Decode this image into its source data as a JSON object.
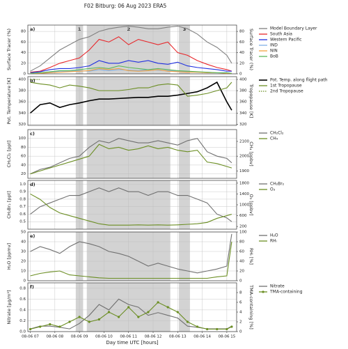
{
  "chart_data": [
    {
      "type": "line",
      "title": "F02 Bitburg: 06 Aug 2023   ERA5",
      "panel": "a)",
      "shading": [
        {
          "label": "1",
          "range": [
            8.85,
            9.15
          ]
        },
        {
          "label": "2",
          "range": [
            9.3,
            12.7
          ]
        },
        {
          "label": "3",
          "range": [
            13.05,
            13.5
          ]
        }
      ],
      "ylabel": "Surface Tracer (%)",
      "y2label": "Surface Tracer (%)",
      "xlim": [
        6.9,
        15.4
      ],
      "ylim": [
        0,
        92
      ],
      "yticks": [
        0,
        20,
        40,
        60,
        80
      ],
      "y2lim": [
        0,
        92
      ],
      "y2ticks": [
        0,
        20,
        40,
        60,
        80
      ],
      "x": [
        7.0,
        7.4,
        7.8,
        8.2,
        8.6,
        9.0,
        9.4,
        9.8,
        10.2,
        10.6,
        11.0,
        11.4,
        11.8,
        12.2,
        12.6,
        13.0,
        13.4,
        13.8,
        14.2,
        14.6,
        15.0,
        15.2
      ],
      "series": [
        {
          "name": "Model Boundary Layer",
          "color": "#808080",
          "values": [
            5,
            15,
            30,
            45,
            55,
            65,
            70,
            80,
            85,
            88,
            90,
            88,
            85,
            85,
            88,
            90,
            85,
            75,
            60,
            50,
            35,
            20
          ]
        },
        {
          "name": "South Asia",
          "color": "#e8262a",
          "values": [
            3,
            5,
            12,
            20,
            25,
            30,
            45,
            65,
            60,
            70,
            55,
            65,
            60,
            55,
            60,
            40,
            35,
            25,
            18,
            12,
            8,
            5
          ]
        },
        {
          "name": "Western Pacific",
          "color": "#1f2fe0",
          "values": [
            2,
            4,
            8,
            10,
            10,
            12,
            15,
            25,
            20,
            20,
            25,
            22,
            25,
            20,
            18,
            22,
            15,
            12,
            10,
            8,
            5,
            5
          ]
        },
        {
          "name": "IND",
          "color": "#7fb0e8",
          "values": [
            1,
            2,
            3,
            5,
            5,
            6,
            5,
            8,
            6,
            8,
            7,
            6,
            8,
            7,
            6,
            5,
            4,
            3,
            3,
            2,
            2,
            1
          ]
        },
        {
          "name": "NIN",
          "color": "#f0a040",
          "values": [
            1,
            1,
            2,
            3,
            4,
            5,
            6,
            10,
            8,
            10,
            6,
            5,
            6,
            8,
            5,
            4,
            3,
            3,
            2,
            2,
            1,
            1
          ]
        },
        {
          "name": "BoB",
          "color": "#5cb85c",
          "values": [
            1,
            2,
            4,
            6,
            6,
            8,
            10,
            12,
            10,
            15,
            12,
            10,
            8,
            10,
            8,
            6,
            5,
            4,
            3,
            2,
            2,
            1
          ]
        }
      ]
    },
    {
      "type": "line",
      "panel": "b)",
      "ylabel": "Pot. Temperature [K]",
      "y2label": "Tropopause [K]",
      "xlim": [
        6.9,
        15.4
      ],
      "ylim": [
        318,
        405
      ],
      "yticks": [
        320,
        340,
        360,
        380,
        400
      ],
      "y2lim": [
        318,
        405
      ],
      "y2ticks": [
        320,
        340,
        360,
        380,
        400
      ],
      "x": [
        7.0,
        7.4,
        7.8,
        8.2,
        8.6,
        9.0,
        9.4,
        9.8,
        10.2,
        10.6,
        11.0,
        11.4,
        11.8,
        12.2,
        12.6,
        13.0,
        13.4,
        13.8,
        14.2,
        14.6,
        15.0,
        15.2
      ],
      "series": [
        {
          "name": "Pot. Temp. along flight path",
          "color": "#000000",
          "width": 1.6,
          "values": [
            340,
            355,
            358,
            350,
            355,
            358,
            362,
            365,
            365,
            366,
            367,
            368,
            368,
            370,
            370,
            372,
            375,
            378,
            385,
            395,
            360,
            345
          ]
        },
        {
          "name": "1st Tropopause",
          "color": "#6b8e23",
          "axis": "y2",
          "values": [
            395,
            392,
            390,
            385,
            390,
            388,
            385,
            380,
            380,
            380,
            382,
            385,
            385,
            390,
            392,
            390,
            370,
            372,
            375,
            380,
            385,
            395
          ]
        },
        {
          "name": "2nd Tropopause",
          "color": "#6b8e23",
          "axis": "y2",
          "dash": "1.5,1.5",
          "values": [
            400,
            400,
            null,
            null,
            null,
            null,
            null,
            null,
            null,
            null,
            null,
            null,
            null,
            null,
            null,
            null,
            null,
            null,
            null,
            null,
            null,
            null
          ]
        }
      ]
    },
    {
      "type": "line",
      "panel": "c)",
      "ylabel": "CH₂Cl₂ [ppt]",
      "y2label": "CH₄ [ppbv]",
      "xlim": [
        6.9,
        15.4
      ],
      "ylim": [
        10,
        120
      ],
      "yticks": [
        20,
        40,
        60,
        80,
        100
      ],
      "y2lim": [
        1850,
        2180
      ],
      "y2ticks": [
        1900,
        2000,
        2100
      ],
      "x": [
        7.0,
        7.4,
        7.8,
        8.2,
        8.6,
        9.0,
        9.4,
        9.8,
        10.2,
        10.6,
        11.0,
        11.4,
        11.8,
        12.2,
        12.6,
        13.0,
        13.4,
        13.8,
        14.2,
        14.6,
        15.0,
        15.2
      ],
      "series": [
        {
          "name": "CH₂Cl₂",
          "color": "#707070",
          "values": [
            20,
            30,
            35,
            45,
            55,
            60,
            80,
            95,
            90,
            100,
            95,
            90,
            90,
            95,
            90,
            85,
            95,
            100,
            70,
            60,
            55,
            45
          ]
        },
        {
          "name": "CH₄",
          "color": "#6b8e23",
          "axis": "y2",
          "values": [
            1880,
            1900,
            1920,
            1940,
            1960,
            1980,
            2000,
            2080,
            2050,
            2060,
            2040,
            2050,
            2070,
            2050,
            2060,
            2040,
            2030,
            2040,
            1960,
            1950,
            1930,
            1920
          ]
        }
      ]
    },
    {
      "type": "line",
      "panel": "d)",
      "ylabel": "CH₂Br₂ [ppt]",
      "y2label": "O₃ [ppbv]",
      "xlim": [
        6.9,
        15.4
      ],
      "ylim": [
        0.4,
        1.05
      ],
      "yticks": [
        0.5,
        0.6,
        0.7,
        0.8,
        0.9,
        {
          "value": 1,
          "label": "1.0"
        }
      ],
      "y2lim": [
        100,
        1900
      ],
      "y2ticks": [
        200,
        600,
        1000,
        1400,
        1800
      ],
      "x": [
        7.0,
        7.4,
        7.8,
        8.2,
        8.6,
        9.0,
        9.4,
        9.8,
        10.2,
        10.6,
        11.0,
        11.4,
        11.8,
        12.2,
        12.6,
        13.0,
        13.4,
        13.8,
        14.2,
        14.6,
        15.0,
        15.2
      ],
      "series": [
        {
          "name": "CH₂Br₂",
          "color": "#707070",
          "values": [
            0.6,
            0.7,
            0.75,
            0.8,
            0.85,
            0.85,
            0.9,
            0.95,
            0.9,
            0.95,
            0.9,
            0.9,
            0.85,
            0.9,
            0.9,
            0.85,
            0.85,
            0.8,
            0.75,
            0.6,
            0.55,
            0.5
          ]
        },
        {
          "name": "O₃",
          "color": "#6b8e23",
          "axis": "y2",
          "values": [
            1400,
            1200,
            900,
            700,
            600,
            500,
            400,
            300,
            250,
            250,
            250,
            260,
            250,
            260,
            250,
            260,
            280,
            300,
            350,
            500,
            600,
            650
          ]
        }
      ]
    },
    {
      "type": "line",
      "panel": "e)",
      "ylabel": "H₂O [ppmv]",
      "y2label": "RHᵢ [%]",
      "xlim": [
        6.9,
        15.4
      ],
      "ylim": [
        0,
        50
      ],
      "yticks": [
        0,
        10,
        20,
        30,
        40,
        50
      ],
      "y2lim": [
        0,
        100
      ],
      "y2ticks": [
        0,
        20,
        40,
        60,
        80,
        100
      ],
      "x": [
        7.0,
        7.4,
        7.8,
        8.2,
        8.6,
        9.0,
        9.4,
        9.8,
        10.2,
        10.6,
        11.0,
        11.4,
        11.8,
        12.2,
        12.6,
        13.0,
        13.4,
        13.8,
        14.2,
        14.6,
        15.0,
        15.2
      ],
      "series": [
        {
          "name": "H₂O",
          "color": "#707070",
          "values": [
            30,
            35,
            32,
            28,
            35,
            40,
            38,
            35,
            30,
            28,
            25,
            20,
            15,
            18,
            15,
            12,
            10,
            8,
            10,
            12,
            15,
            48
          ]
        },
        {
          "name": "RHᵢ",
          "color": "#6b8e23",
          "axis": "y2",
          "values": [
            10,
            15,
            18,
            20,
            12,
            10,
            8,
            6,
            5,
            5,
            5,
            5,
            5,
            5,
            5,
            5,
            5,
            5,
            5,
            8,
            10,
            80
          ]
        }
      ]
    },
    {
      "type": "line",
      "panel": "f)",
      "ylabel": "Nitrate [μg/m³]",
      "y2label": "TMA-containing [%]",
      "xlabel": "Day time UTC  [hours]",
      "xlim": [
        6.9,
        15.4
      ],
      "xticks": [
        {
          "value": 7,
          "label": "08-06 07"
        },
        {
          "value": 8,
          "label": "08-06 08"
        },
        {
          "value": 9,
          "label": "08-06 09"
        },
        {
          "value": 10,
          "label": "08-06 10"
        },
        {
          "value": 11,
          "label": "08-06 11"
        },
        {
          "value": 12,
          "label": "08-06 12"
        },
        {
          "value": 13,
          "label": "08-06 13"
        },
        {
          "value": 14,
          "label": "08-06 14"
        },
        {
          "value": 15,
          "label": "08-06 15"
        }
      ],
      "ylim": [
        0,
        0.9
      ],
      "yticks": [
        {
          "value": 0,
          "label": "0.0"
        },
        0.2,
        0.4,
        0.6,
        0.8
      ],
      "y2lim": [
        0,
        10
      ],
      "y2ticks": [
        0,
        2,
        4,
        6,
        8
      ],
      "x": [
        7.0,
        7.4,
        7.8,
        8.2,
        8.6,
        9.0,
        9.4,
        9.8,
        10.2,
        10.6,
        11.0,
        11.4,
        11.8,
        12.2,
        12.6,
        13.0,
        13.4,
        13.8,
        14.2,
        14.6,
        15.0,
        15.2
      ],
      "series": [
        {
          "name": "Nitrate",
          "color": "#707070",
          "values": [
            0.05,
            0.1,
            0.1,
            0.08,
            0.05,
            0.15,
            0.3,
            0.5,
            0.4,
            0.6,
            0.5,
            0.45,
            0.3,
            0.35,
            0.3,
            0.25,
            0.1,
            0.08,
            0.05,
            0.05,
            0.05,
            0.1
          ]
        },
        {
          "name": "TMA-containing",
          "color": "#6b8e23",
          "axis": "y2",
          "markers": true,
          "values": [
            0.5,
            1,
            1.5,
            1,
            2,
            3,
            2,
            2.5,
            4,
            3,
            5,
            3,
            4,
            6,
            5,
            4,
            2,
            1,
            0.5,
            0.5,
            0.5,
            1
          ]
        }
      ]
    }
  ]
}
